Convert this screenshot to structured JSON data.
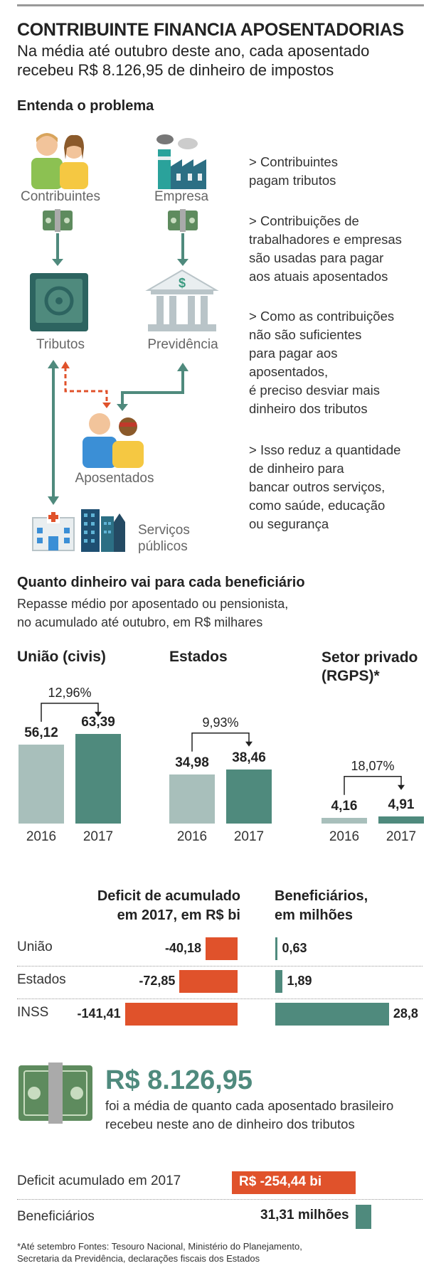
{
  "title": "CONTRIBUINTE FINANCIA APOSENTADORIAS",
  "subtitle_line1": "Na média até outubro deste ano, cada aposentado",
  "subtitle_line2": "recebeu R$ 8.126,95 de dinheiro de impostos",
  "section1": {
    "heading": "Entenda o problema",
    "labels": {
      "contribuintes": "Contribuintes",
      "empresa": "Empresa",
      "tributos": "Tributos",
      "previdencia": "Previdência",
      "aposentados": "Aposentados",
      "servicos_line1": "Serviços",
      "servicos_line2": "públicos"
    },
    "explanations": [
      [
        "> Contribuintes",
        "pagam tributos"
      ],
      [
        "> Contribuições de",
        "trabalhadores e empresas",
        "são usadas para pagar",
        "aos atuais aposentados"
      ],
      [
        "> Como as contribuições",
        "não são suficientes",
        "para pagar aos",
        "aposentados,",
        "é preciso desviar mais",
        "dinheiro dos tributos"
      ],
      [
        "> Isso reduz a quantidade",
        "de dinheiro para",
        "bancar outros serviços,",
        "como saúde, educação",
        "ou segurança"
      ]
    ]
  },
  "section2": {
    "heading": "Quanto dinheiro vai para cada beneficiário",
    "desc_line1": "Repasse médio por aposentado ou pensionista,",
    "desc_line2": "no acumulado até outubro, em R$ milhares"
  },
  "section3": {
    "deficit_header_line1": "Deficit de acumulado",
    "deficit_header_line2": "em 2017, em R$ bi",
    "benef_header_line1": "Beneficiários,",
    "benef_header_line2": "em milhões"
  },
  "highlight": {
    "value": "R$ 8.126,95",
    "text_line1": "foi a média de quanto cada aposentado brasileiro",
    "text_line2": "recebeu neste ano de dinheiro dos tributos"
  },
  "summary": {
    "deficit_label": "Deficit acumulado em 2017",
    "deficit_value": "R$ -254,44 bi",
    "benef_label": "Beneficiários",
    "benef_value": "31,31 milhões"
  },
  "footnote_line1": "*Até setembro     Fontes: Tesouro Nacional, Ministério do Planejamento,",
  "footnote_line2": "Secretaria da Previdência, declarações fiscais dos Estados",
  "colors": {
    "light": "#a8bfbb",
    "dark": "#4f8a7d",
    "orange": "#e0522b"
  },
  "chart_data": [
    {
      "type": "bar",
      "title": "União (civis)",
      "categories": [
        "2016",
        "2017"
      ],
      "values": [
        56.12,
        63.39
      ],
      "labels": [
        "56,12",
        "63,39"
      ],
      "change": "12,96%"
    },
    {
      "type": "bar",
      "title": "Estados",
      "categories": [
        "2016",
        "2017"
      ],
      "values": [
        34.98,
        38.46
      ],
      "labels": [
        "34,98",
        "38,46"
      ],
      "change": "9,93%"
    },
    {
      "type": "bar",
      "title": "Setor privado (RGPS)*",
      "categories": [
        "2016",
        "2017"
      ],
      "values": [
        4.16,
        4.91
      ],
      "labels": [
        "4,16",
        "4,91"
      ],
      "change": "18,07%"
    },
    {
      "type": "bar",
      "title": "Deficit de acumulado em 2017, em R$ bi",
      "categories": [
        "União",
        "Estados",
        "INSS"
      ],
      "values": [
        -40.18,
        -72.85,
        -141.41
      ],
      "labels": [
        "-40,18",
        "-72,85",
        "-141,41"
      ]
    },
    {
      "type": "bar",
      "title": "Beneficiários, em milhões",
      "categories": [
        "União",
        "Estados",
        "INSS"
      ],
      "values": [
        0.63,
        1.89,
        28.8
      ],
      "labels": [
        "0,63",
        "1,89",
        "28,8"
      ]
    }
  ]
}
